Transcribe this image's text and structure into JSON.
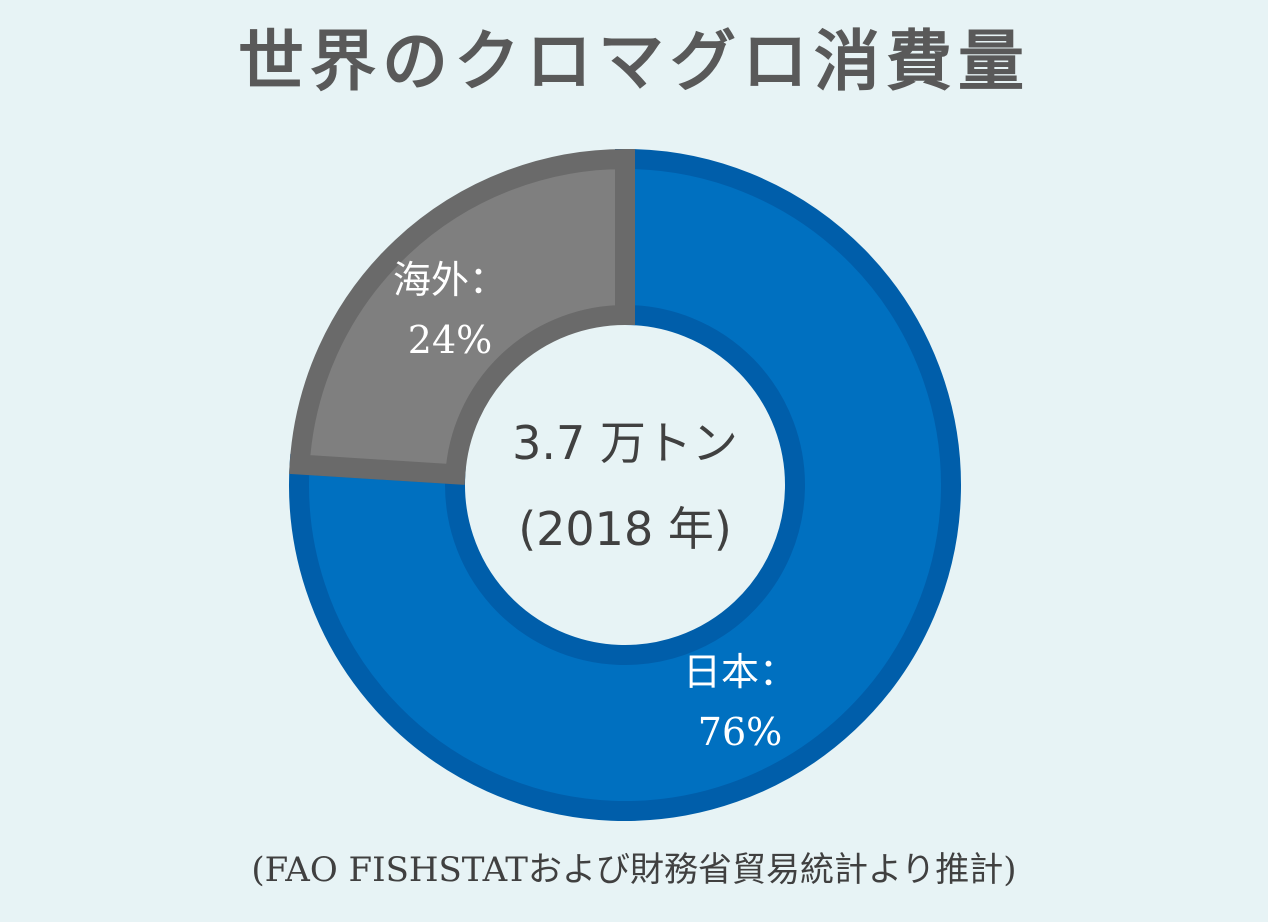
{
  "chart_data": {
    "type": "pie",
    "title": "世界のクロマグロ消費量",
    "center_label": {
      "line1": "3.7 万トン",
      "line2": "(2018 年)"
    },
    "slices": [
      {
        "label": "日本：",
        "value_text": "76%",
        "value": 76,
        "color": "#0070c0",
        "border_color": "#005eaa"
      },
      {
        "label": "海外：",
        "value_text": "24%",
        "value": 24,
        "color": "#7f7f7f",
        "border_color": "#6a6a6a"
      }
    ],
    "source": "(FAO FISHSTATおよび財務省貿易統計より推計)"
  }
}
